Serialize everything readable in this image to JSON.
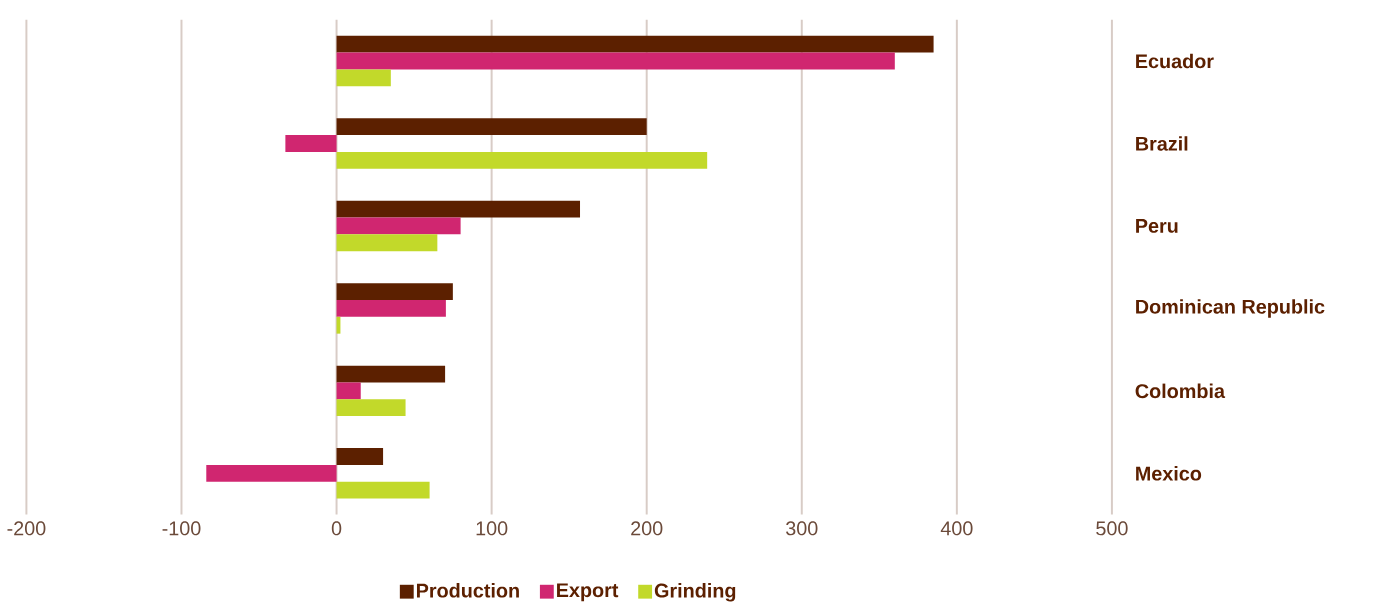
{
  "chart_data": {
    "type": "bar",
    "orientation": "horizontal",
    "categories": [
      "Ecuador",
      "Brazil",
      "Peru",
      "Dominican Republic",
      "Colombia",
      "Mexico"
    ],
    "series": [
      {
        "name": "Production",
        "color": "#5c2000",
        "values": [
          385,
          200,
          157,
          75,
          70,
          30
        ]
      },
      {
        "name": "Export",
        "color": "#d02670",
        "values": [
          360,
          -33,
          80,
          70.5,
          15.6,
          -84
        ]
      },
      {
        "name": "Grinding",
        "color": "#c2d92a",
        "values": [
          35,
          239,
          65,
          2.5,
          44.5,
          60
        ]
      }
    ],
    "xlim": [
      -200,
      500
    ],
    "xticks": [
      -200,
      -100,
      0,
      100,
      200,
      300,
      400,
      500
    ],
    "grid": "x",
    "legend": "bottom"
  }
}
